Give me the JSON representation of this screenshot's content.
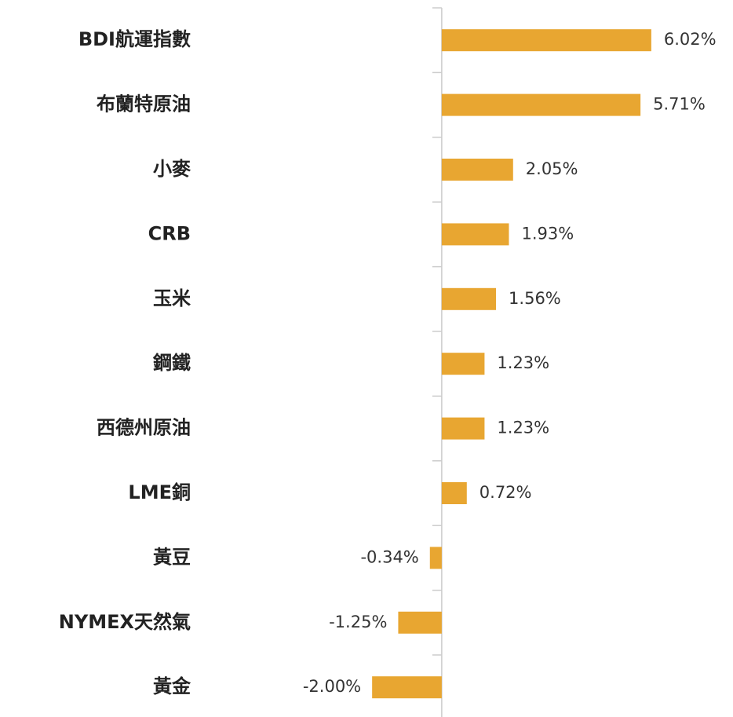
{
  "chart_data": {
    "type": "barh",
    "categories": [
      "BDI航運指數",
      "布蘭特原油",
      "小麥",
      "CRB",
      "玉米",
      "鋼鐵",
      "西德州原油",
      "LME銅",
      "黃豆",
      "NYMEX天然氣",
      "黃金"
    ],
    "values": [
      6.02,
      5.71,
      2.05,
      1.93,
      1.56,
      1.23,
      1.23,
      0.72,
      -0.34,
      -1.25,
      -2.0
    ],
    "value_labels": [
      "6.02%",
      "5.71%",
      "2.05%",
      "1.93%",
      "1.56%",
      "1.23%",
      "1.23%",
      "0.72%",
      "-0.34%",
      "-1.25%",
      "-2.00%"
    ],
    "color": "#e8a631",
    "xlim": [
      -5.25,
      8.3
    ]
  }
}
